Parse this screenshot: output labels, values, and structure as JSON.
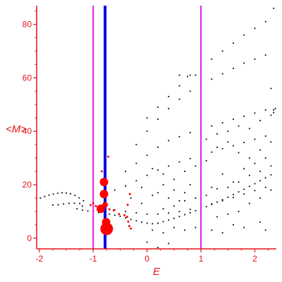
{
  "chart_data": {
    "type": "scatter",
    "xlabel": "E",
    "ylabel": "<M>",
    "xlim": [
      -2.05,
      2.4
    ],
    "ylim": [
      -4,
      87
    ],
    "x_ticks": [
      -2,
      -1,
      0,
      1,
      2
    ],
    "y_ticks": [
      0,
      20,
      40,
      60,
      80
    ],
    "colors": {
      "axis": "#e8141c",
      "black_points": "#000000",
      "red_points": "#ff0000",
      "magenta_lines": "#e020e0",
      "blue_line": "#0000ee"
    },
    "vertical_lines": [
      {
        "x": -1.0,
        "color": "#e020e0",
        "weight": "thin"
      },
      {
        "x": -0.78,
        "color": "#0000ee",
        "weight": "thick"
      },
      {
        "x": 1.0,
        "color": "#e020e0",
        "weight": "thin"
      }
    ],
    "black_points": [
      [
        -1.98,
        15.0
      ],
      [
        -1.9,
        15.6
      ],
      [
        -1.82,
        16.1
      ],
      [
        -1.74,
        16.5
      ],
      [
        -1.66,
        16.8
      ],
      [
        -1.58,
        17.0
      ],
      [
        -1.5,
        16.9
      ],
      [
        -1.42,
        16.6
      ],
      [
        -1.34,
        16.0
      ],
      [
        -1.26,
        15.1
      ],
      [
        -1.18,
        14.0
      ],
      [
        -1.75,
        12.4
      ],
      [
        -1.65,
        12.5
      ],
      [
        -1.55,
        12.8
      ],
      [
        -1.45,
        13.0
      ],
      [
        -1.35,
        13.1
      ],
      [
        -1.25,
        13.0
      ],
      [
        -1.2,
        12.0
      ],
      [
        -1.3,
        11.0
      ],
      [
        -1.2,
        10.5
      ],
      [
        -1.1,
        10.2
      ],
      [
        -1.0,
        10.0
      ],
      [
        -0.9,
        9.6
      ],
      [
        -0.7,
        9.0
      ],
      [
        -0.6,
        8.6
      ],
      [
        -0.5,
        8.2
      ],
      [
        -0.4,
        7.6
      ],
      [
        -0.3,
        7.0
      ],
      [
        -0.2,
        6.5
      ],
      [
        -0.1,
        6.0
      ],
      [
        0.0,
        5.6
      ],
      [
        0.1,
        5.4
      ],
      [
        0.2,
        5.6
      ],
      [
        0.3,
        6.2
      ],
      [
        0.4,
        6.8
      ],
      [
        0.5,
        7.4
      ],
      [
        0.6,
        8.1
      ],
      [
        0.7,
        8.8
      ],
      [
        0.8,
        9.5
      ],
      [
        0.9,
        10.3
      ],
      [
        1.0,
        11.0
      ],
      [
        1.1,
        11.8
      ],
      [
        1.2,
        12.6
      ],
      [
        1.3,
        13.5
      ],
      [
        1.4,
        14.4
      ],
      [
        1.5,
        15.3
      ],
      [
        1.6,
        16.3
      ],
      [
        1.7,
        17.3
      ],
      [
        1.8,
        18.3
      ],
      [
        1.9,
        19.4
      ],
      [
        2.0,
        20.4
      ],
      [
        2.1,
        21.5
      ],
      [
        2.2,
        22.6
      ],
      [
        2.3,
        23.7
      ],
      [
        -0.6,
        10.6
      ],
      [
        -0.4,
        10.0
      ],
      [
        -0.2,
        9.5
      ],
      [
        0.0,
        9.0
      ],
      [
        0.2,
        9.0
      ],
      [
        0.4,
        9.4
      ],
      [
        0.6,
        10.0
      ],
      [
        0.8,
        10.8
      ],
      [
        1.0,
        11.8
      ],
      [
        1.2,
        12.8
      ],
      [
        1.4,
        14.0
      ],
      [
        1.6,
        15.2
      ],
      [
        1.8,
        16.5
      ],
      [
        2.0,
        17.8
      ],
      [
        2.2,
        19.0
      ],
      [
        -0.6,
        18.0
      ],
      [
        -0.4,
        19.5
      ],
      [
        -0.2,
        21.5
      ],
      [
        0.0,
        23.5
      ],
      [
        0.2,
        25.5
      ],
      [
        0.4,
        27.0
      ],
      [
        0.6,
        28.5
      ],
      [
        0.8,
        29.8
      ],
      [
        1.0,
        31.0
      ],
      [
        1.2,
        32.2
      ],
      [
        1.4,
        33.5
      ],
      [
        1.6,
        34.6
      ],
      [
        1.8,
        35.8
      ],
      [
        2.0,
        37.0
      ],
      [
        2.2,
        38.2
      ],
      [
        -0.4,
        25.0
      ],
      [
        -0.2,
        28.0
      ],
      [
        0.0,
        31.0
      ],
      [
        0.2,
        34.0
      ],
      [
        0.4,
        36.5
      ],
      [
        0.6,
        38.0
      ],
      [
        0.8,
        39.5
      ],
      [
        1.0,
        40.8
      ],
      [
        1.2,
        42.0
      ],
      [
        1.4,
        43.2
      ],
      [
        1.6,
        44.5
      ],
      [
        1.8,
        45.6
      ],
      [
        2.0,
        46.8
      ],
      [
        2.2,
        48.0
      ],
      [
        -0.2,
        35.0
      ],
      [
        0.0,
        40.0
      ],
      [
        0.2,
        44.5
      ],
      [
        0.4,
        48.5
      ],
      [
        0.6,
        52.0
      ],
      [
        0.8,
        55.0
      ],
      [
        1.0,
        57.5
      ],
      [
        1.2,
        59.5
      ],
      [
        1.4,
        61.5
      ],
      [
        1.6,
        63.5
      ],
      [
        1.8,
        65.5
      ],
      [
        2.0,
        67.0
      ],
      [
        2.2,
        68.5
      ],
      [
        0.0,
        45.0
      ],
      [
        0.2,
        49.0
      ],
      [
        0.4,
        53.0
      ],
      [
        0.6,
        57.0
      ],
      [
        0.8,
        61.0
      ],
      [
        1.0,
        64.0
      ],
      [
        1.2,
        67.0
      ],
      [
        1.4,
        70.0
      ],
      [
        1.6,
        73.0
      ],
      [
        1.8,
        76.0
      ],
      [
        2.0,
        78.5
      ],
      [
        2.2,
        81.0
      ],
      [
        2.35,
        86.0
      ],
      [
        0.6,
        61.0
      ],
      [
        0.75,
        60.5
      ],
      [
        0.9,
        61.0
      ],
      [
        2.3,
        56.0
      ],
      [
        2.35,
        48.0
      ],
      [
        2.35,
        47.0
      ],
      [
        2.38,
        48.5
      ],
      [
        0.2,
        17.0
      ],
      [
        0.4,
        15.0
      ],
      [
        0.6,
        14.0
      ],
      [
        0.8,
        20.0
      ],
      [
        1.0,
        22.0
      ],
      [
        1.2,
        19.0
      ],
      [
        1.4,
        24.0
      ],
      [
        1.6,
        21.0
      ],
      [
        1.8,
        26.0
      ],
      [
        2.0,
        28.0
      ],
      [
        2.2,
        30.0
      ],
      [
        0.1,
        3.0
      ],
      [
        0.3,
        2.0
      ],
      [
        0.5,
        4.0
      ],
      [
        1.2,
        3.0
      ],
      [
        1.8,
        4.0
      ],
      [
        2.2,
        3.0
      ],
      [
        0.0,
        -1.5
      ],
      [
        0.2,
        -3.5
      ],
      [
        0.4,
        -2.0
      ],
      [
        1.4,
        2.0
      ],
      [
        1.6,
        5.0
      ],
      [
        2.1,
        6.0
      ],
      [
        0.7,
        3.0
      ],
      [
        0.9,
        4.0
      ],
      [
        1.3,
        8.0
      ],
      [
        1.5,
        9.0
      ],
      [
        1.7,
        10.0
      ],
      [
        1.9,
        13.0
      ],
      [
        2.1,
        15.0
      ],
      [
        2.3,
        18.0
      ],
      [
        0.5,
        12.0
      ],
      [
        0.7,
        14.0
      ],
      [
        0.3,
        11.0
      ],
      [
        -0.1,
        13.0
      ],
      [
        0.1,
        16.0
      ],
      [
        0.3,
        20.0
      ],
      [
        0.5,
        22.0
      ],
      [
        0.7,
        25.0
      ],
      [
        0.9,
        27.0
      ],
      [
        1.1,
        29.0
      ],
      [
        1.3,
        34.0
      ],
      [
        1.5,
        36.0
      ],
      [
        1.7,
        32.0
      ],
      [
        1.9,
        30.0
      ],
      [
        2.1,
        33.0
      ],
      [
        2.3,
        36.0
      ],
      [
        1.1,
        16.0
      ],
      [
        1.3,
        18.5
      ],
      [
        1.5,
        19.0
      ],
      [
        1.7,
        21.0
      ],
      [
        1.9,
        23.5
      ],
      [
        2.1,
        25.0
      ],
      [
        2.3,
        27.0
      ],
      [
        0.9,
        15.0
      ],
      [
        0.7,
        17.0
      ],
      [
        0.5,
        18.0
      ],
      [
        0.3,
        24.0
      ],
      [
        0.1,
        26.0
      ],
      [
        -0.1,
        19.0
      ],
      [
        -0.3,
        15.0
      ],
      [
        1.1,
        37.0
      ],
      [
        1.3,
        39.0
      ],
      [
        1.5,
        40.0
      ],
      [
        1.7,
        42.0
      ],
      [
        1.9,
        41.0
      ],
      [
        2.1,
        44.0
      ],
      [
        2.3,
        46.0
      ]
    ],
    "red_points": [
      {
        "x": -0.8,
        "y": 21.0,
        "size": "medium"
      },
      {
        "x": -0.8,
        "y": 16.5,
        "size": "medium"
      },
      {
        "x": -0.78,
        "y": 12.5,
        "size": "small"
      },
      {
        "x": -0.86,
        "y": 11.0,
        "size": "medium"
      },
      {
        "x": -0.76,
        "y": 6.0,
        "size": "medium"
      },
      {
        "x": -0.75,
        "y": 3.5,
        "size": "large"
      },
      {
        "x": -0.72,
        "y": 30.5,
        "size": "tiny"
      },
      {
        "x": -0.84,
        "y": 25.0,
        "size": "tiny"
      },
      {
        "x": -1.0,
        "y": 13.0,
        "size": "tiny"
      },
      {
        "x": -1.05,
        "y": 12.4,
        "size": "tiny"
      },
      {
        "x": -0.95,
        "y": 12.0,
        "size": "tiny"
      },
      {
        "x": -0.9,
        "y": 11.6,
        "size": "tiny"
      },
      {
        "x": -0.7,
        "y": 10.8,
        "size": "tiny"
      },
      {
        "x": -0.62,
        "y": 10.4,
        "size": "tiny"
      },
      {
        "x": -0.52,
        "y": 9.0,
        "size": "tiny"
      },
      {
        "x": -0.42,
        "y": 8.6,
        "size": "tiny"
      },
      {
        "x": -0.37,
        "y": 8.0,
        "size": "tiny"
      },
      {
        "x": -0.35,
        "y": 6.2,
        "size": "tiny"
      },
      {
        "x": -0.33,
        "y": 4.5,
        "size": "tiny"
      },
      {
        "x": -0.3,
        "y": 3.6,
        "size": "tiny"
      },
      {
        "x": -0.36,
        "y": 12.5,
        "size": "tiny"
      },
      {
        "x": -0.32,
        "y": 16.5,
        "size": "tiny"
      }
    ]
  }
}
